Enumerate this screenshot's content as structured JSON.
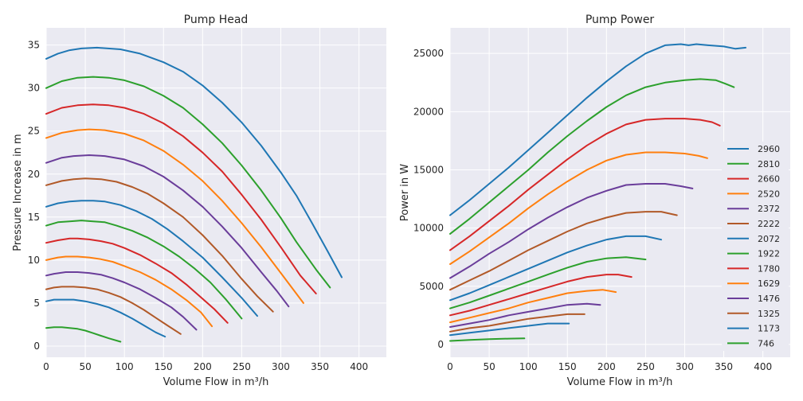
{
  "palette": [
    "#1f77b4",
    "#2ca02c",
    "#d62728",
    "#ff7f0e",
    "#6a3d9a",
    "#b15928"
  ],
  "chart_data": [
    {
      "type": "line",
      "title": "Pump Head",
      "xlabel": "Volume Flow in m³/h",
      "ylabel": "Pressure Increase in m",
      "xlim": [
        0,
        435
      ],
      "ylim": [
        -1.3,
        37
      ],
      "xticks": [
        "0",
        "50",
        "100",
        "150",
        "200",
        "250",
        "300",
        "350",
        "400"
      ],
      "yticks": [
        "0",
        "5",
        "10",
        "15",
        "20",
        "25",
        "30",
        "35"
      ],
      "grid": true,
      "legend": "none",
      "series": [
        {
          "color": "#1f77b4",
          "x": [
            0,
            15,
            30,
            45,
            65,
            95,
            120,
            150,
            175,
            200,
            225,
            250,
            275,
            300,
            320,
            340,
            360,
            378
          ],
          "y": [
            33.4,
            34.0,
            34.4,
            34.6,
            34.7,
            34.5,
            34.0,
            33.0,
            31.9,
            30.3,
            28.3,
            26.0,
            23.3,
            20.2,
            17.5,
            14.3,
            11.0,
            8.0
          ]
        },
        {
          "color": "#2ca02c",
          "x": [
            0,
            20,
            40,
            60,
            80,
            100,
            125,
            150,
            175,
            200,
            225,
            250,
            275,
            300,
            320,
            345,
            363
          ],
          "y": [
            30.0,
            30.8,
            31.2,
            31.3,
            31.2,
            30.9,
            30.2,
            29.1,
            27.7,
            25.8,
            23.6,
            21.0,
            18.1,
            14.9,
            12.1,
            8.9,
            6.8
          ]
        },
        {
          "color": "#d62728",
          "x": [
            0,
            20,
            40,
            60,
            80,
            100,
            125,
            150,
            175,
            200,
            225,
            250,
            275,
            300,
            325,
            345
          ],
          "y": [
            27.0,
            27.7,
            28.0,
            28.1,
            28.0,
            27.7,
            27.0,
            25.9,
            24.4,
            22.5,
            20.3,
            17.6,
            14.7,
            11.5,
            8.2,
            6.1
          ]
        },
        {
          "color": "#ff7f0e",
          "x": [
            0,
            20,
            40,
            55,
            75,
            100,
            125,
            150,
            175,
            200,
            225,
            250,
            275,
            300,
            329
          ],
          "y": [
            24.2,
            24.8,
            25.1,
            25.2,
            25.1,
            24.7,
            23.9,
            22.7,
            21.1,
            19.2,
            16.9,
            14.3,
            11.5,
            8.5,
            5.0
          ]
        },
        {
          "color": "#6a3d9a",
          "x": [
            0,
            20,
            35,
            55,
            75,
            100,
            125,
            150,
            175,
            200,
            225,
            250,
            275,
            295,
            310
          ],
          "y": [
            21.3,
            21.9,
            22.1,
            22.2,
            22.1,
            21.7,
            20.9,
            19.7,
            18.1,
            16.2,
            13.9,
            11.4,
            8.6,
            6.4,
            4.6
          ]
        },
        {
          "color": "#b15928",
          "x": [
            0,
            20,
            35,
            50,
            70,
            90,
            110,
            130,
            150,
            175,
            200,
            225,
            250,
            270,
            290
          ],
          "y": [
            18.7,
            19.2,
            19.4,
            19.5,
            19.4,
            19.1,
            18.5,
            17.7,
            16.6,
            15.0,
            12.9,
            10.5,
            7.8,
            5.8,
            4.0
          ]
        },
        {
          "color": "#1f77b4",
          "x": [
            0,
            15,
            30,
            45,
            60,
            75,
            95,
            115,
            135,
            155,
            175,
            200,
            225,
            250,
            270
          ],
          "y": [
            16.2,
            16.6,
            16.8,
            16.9,
            16.9,
            16.8,
            16.4,
            15.7,
            14.8,
            13.6,
            12.2,
            10.3,
            8.0,
            5.6,
            3.5
          ]
        },
        {
          "color": "#2ca02c",
          "x": [
            0,
            15,
            30,
            45,
            60,
            75,
            90,
            110,
            130,
            150,
            170,
            190,
            210,
            230,
            250
          ],
          "y": [
            14.0,
            14.4,
            14.5,
            14.6,
            14.5,
            14.4,
            14.0,
            13.4,
            12.6,
            11.6,
            10.4,
            9.0,
            7.4,
            5.4,
            3.2
          ]
        },
        {
          "color": "#d62728",
          "x": [
            0,
            15,
            30,
            40,
            55,
            70,
            85,
            100,
            120,
            140,
            160,
            180,
            200,
            215,
            232
          ],
          "y": [
            12.0,
            12.3,
            12.5,
            12.5,
            12.4,
            12.2,
            11.9,
            11.4,
            10.6,
            9.6,
            8.5,
            7.1,
            5.5,
            4.3,
            2.7
          ]
        },
        {
          "color": "#ff7f0e",
          "x": [
            0,
            15,
            25,
            40,
            55,
            70,
            85,
            100,
            120,
            140,
            160,
            180,
            198,
            212
          ],
          "y": [
            10.0,
            10.3,
            10.4,
            10.4,
            10.3,
            10.1,
            9.8,
            9.3,
            8.6,
            7.7,
            6.6,
            5.3,
            3.9,
            2.3
          ]
        },
        {
          "color": "#6a3d9a",
          "x": [
            0,
            10,
            25,
            40,
            55,
            70,
            85,
            100,
            120,
            140,
            160,
            175,
            192
          ],
          "y": [
            8.2,
            8.4,
            8.6,
            8.6,
            8.5,
            8.3,
            7.9,
            7.4,
            6.6,
            5.6,
            4.5,
            3.4,
            1.9
          ]
        },
        {
          "color": "#b15928",
          "x": [
            0,
            10,
            20,
            35,
            50,
            65,
            80,
            95,
            110,
            125,
            140,
            155,
            172
          ],
          "y": [
            6.6,
            6.8,
            6.9,
            6.9,
            6.8,
            6.6,
            6.2,
            5.7,
            5.0,
            4.2,
            3.3,
            2.4,
            1.4
          ]
        },
        {
          "color": "#1f77b4",
          "x": [
            0,
            10,
            20,
            35,
            50,
            65,
            80,
            95,
            110,
            125,
            140,
            152
          ],
          "y": [
            5.2,
            5.4,
            5.4,
            5.4,
            5.2,
            4.9,
            4.5,
            3.9,
            3.2,
            2.4,
            1.6,
            1.1
          ]
        },
        {
          "color": "#2ca02c",
          "x": [
            0,
            10,
            20,
            30,
            40,
            50,
            60,
            70,
            80,
            95
          ],
          "y": [
            2.1,
            2.2,
            2.2,
            2.1,
            2.0,
            1.8,
            1.5,
            1.2,
            0.9,
            0.5
          ]
        }
      ]
    },
    {
      "type": "line",
      "title": "Pump Power",
      "xlabel": "Volume Flow in m³/h",
      "ylabel": "Power in W",
      "xlim": [
        0,
        435
      ],
      "ylim": [
        -1100,
        27200
      ],
      "xticks": [
        "0",
        "50",
        "100",
        "150",
        "200",
        "250",
        "300",
        "350",
        "400"
      ],
      "yticks": [
        "0",
        "5000",
        "10000",
        "15000",
        "20000",
        "25000"
      ],
      "grid": true,
      "legend": "right",
      "series": [
        {
          "name": "2960",
          "color": "#1f77b4",
          "x": [
            0,
            25,
            50,
            75,
            100,
            125,
            150,
            175,
            200,
            225,
            250,
            275,
            295,
            305,
            315,
            330,
            350,
            365,
            378
          ],
          "y": [
            11100,
            12400,
            13800,
            15200,
            16700,
            18200,
            19700,
            21200,
            22600,
            23900,
            25000,
            25700,
            25800,
            25700,
            25800,
            25700,
            25600,
            25400,
            25500
          ]
        },
        {
          "name": "2810",
          "color": "#2ca02c",
          "x": [
            0,
            25,
            50,
            75,
            100,
            125,
            150,
            175,
            200,
            225,
            250,
            275,
            300,
            320,
            340,
            352,
            363
          ],
          "y": [
            9500,
            10800,
            12200,
            13600,
            15000,
            16500,
            17900,
            19200,
            20400,
            21400,
            22100,
            22500,
            22700,
            22800,
            22700,
            22400,
            22100
          ]
        },
        {
          "name": "2660",
          "color": "#d62728",
          "x": [
            0,
            25,
            50,
            75,
            100,
            125,
            150,
            175,
            200,
            225,
            250,
            275,
            300,
            320,
            335,
            345
          ],
          "y": [
            8100,
            9300,
            10600,
            11900,
            13300,
            14600,
            15900,
            17100,
            18100,
            18900,
            19300,
            19400,
            19400,
            19300,
            19100,
            18800
          ]
        },
        {
          "name": "2520",
          "color": "#ff7f0e",
          "x": [
            0,
            25,
            50,
            75,
            100,
            125,
            150,
            175,
            200,
            225,
            250,
            275,
            300,
            318,
            329
          ],
          "y": [
            6900,
            8000,
            9200,
            10400,
            11700,
            12900,
            14000,
            15000,
            15800,
            16300,
            16500,
            16500,
            16400,
            16200,
            16000
          ]
        },
        {
          "name": "2372",
          "color": "#6a3d9a",
          "x": [
            0,
            25,
            50,
            75,
            100,
            125,
            150,
            175,
            200,
            225,
            250,
            275,
            295,
            310
          ],
          "y": [
            5700,
            6700,
            7800,
            8800,
            9900,
            10900,
            11800,
            12600,
            13200,
            13700,
            13800,
            13800,
            13600,
            13400
          ]
        },
        {
          "name": "2222",
          "color": "#b15928",
          "x": [
            0,
            25,
            50,
            75,
            100,
            125,
            150,
            175,
            200,
            225,
            250,
            270,
            290
          ],
          "y": [
            4700,
            5500,
            6300,
            7200,
            8100,
            8900,
            9700,
            10400,
            10900,
            11300,
            11400,
            11400,
            11100
          ]
        },
        {
          "name": "2072",
          "color": "#1f77b4",
          "x": [
            0,
            25,
            50,
            75,
            100,
            125,
            150,
            175,
            200,
            225,
            250,
            270
          ],
          "y": [
            3800,
            4400,
            5100,
            5800,
            6500,
            7200,
            7900,
            8500,
            9000,
            9300,
            9300,
            9000
          ]
        },
        {
          "name": "1922",
          "color": "#2ca02c",
          "x": [
            0,
            25,
            50,
            75,
            100,
            125,
            150,
            175,
            200,
            225,
            250
          ],
          "y": [
            3100,
            3600,
            4200,
            4800,
            5400,
            6000,
            6600,
            7100,
            7400,
            7500,
            7300
          ]
        },
        {
          "name": "1780",
          "color": "#d62728",
          "x": [
            0,
            25,
            50,
            75,
            100,
            125,
            150,
            175,
            200,
            215,
            232
          ],
          "y": [
            2500,
            2900,
            3400,
            3900,
            4400,
            4900,
            5400,
            5800,
            6000,
            6000,
            5800
          ]
        },
        {
          "name": "1629",
          "color": "#ff7f0e",
          "x": [
            0,
            25,
            50,
            75,
            100,
            125,
            150,
            175,
            195,
            212
          ],
          "y": [
            1900,
            2300,
            2700,
            3100,
            3600,
            4000,
            4400,
            4600,
            4700,
            4500
          ]
        },
        {
          "name": "1476",
          "color": "#6a3d9a",
          "x": [
            0,
            25,
            50,
            75,
            100,
            125,
            150,
            175,
            192
          ],
          "y": [
            1500,
            1800,
            2100,
            2500,
            2800,
            3100,
            3400,
            3500,
            3400
          ]
        },
        {
          "name": "1325",
          "color": "#b15928",
          "x": [
            0,
            25,
            50,
            75,
            100,
            125,
            150,
            172
          ],
          "y": [
            1100,
            1400,
            1600,
            1900,
            2200,
            2400,
            2600,
            2600
          ]
        },
        {
          "name": "1173",
          "color": "#1f77b4",
          "x": [
            0,
            25,
            50,
            75,
            100,
            125,
            152
          ],
          "y": [
            800,
            1000,
            1200,
            1400,
            1600,
            1800,
            1800
          ]
        },
        {
          "name": "746",
          "color": "#2ca02c",
          "x": [
            0,
            25,
            50,
            75,
            95
          ],
          "y": [
            300,
            380,
            450,
            500,
            520
          ]
        }
      ]
    }
  ]
}
